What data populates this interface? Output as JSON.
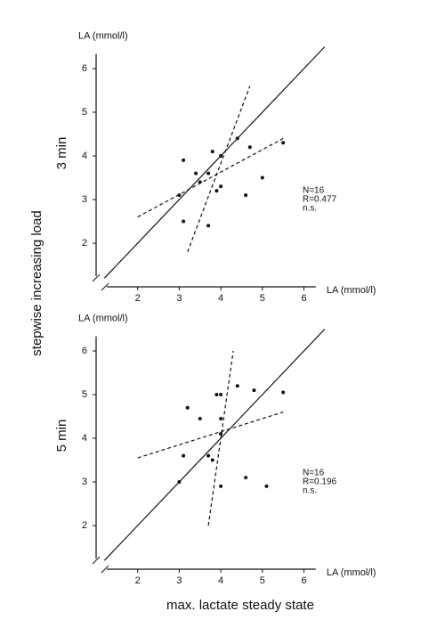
{
  "figure": {
    "y_title": "stepwise increasing load",
    "x_title": "max. lactate steady state"
  },
  "chart_data": [
    {
      "type": "scatter",
      "panel_label": "3 min",
      "ylabel": "LA (mmol/l)",
      "xlabel": "LA (mmol/l)",
      "x": [
        3.1,
        3.0,
        3.1,
        3.4,
        3.5,
        3.7,
        3.8,
        4.0,
        4.0,
        3.9,
        3.7,
        4.4,
        4.7,
        4.6,
        5.0,
        5.5
      ],
      "y": [
        3.9,
        3.1,
        2.5,
        3.6,
        3.4,
        3.6,
        4.1,
        4.0,
        3.3,
        3.2,
        2.4,
        4.4,
        4.2,
        3.1,
        3.5,
        4.3
      ],
      "color": "#111111",
      "lines": [
        {
          "x": [
            1.2,
            6.5
          ],
          "y": [
            1.2,
            6.5
          ],
          "style": "solid"
        },
        {
          "x": [
            2.0,
            5.5
          ],
          "y": [
            2.6,
            4.4
          ],
          "style": "dashed"
        },
        {
          "x": [
            3.2,
            4.7
          ],
          "y": [
            1.8,
            5.6
          ],
          "style": "dashed"
        }
      ],
      "xlim": [
        1,
        6.5
      ],
      "ylim": [
        1,
        6.5
      ],
      "xticks": [
        2,
        3,
        4,
        5,
        6
      ],
      "yticks": [
        2,
        3,
        4,
        5,
        6
      ],
      "annotations": [
        "N=16",
        "R=0.477",
        "n.s."
      ]
    },
    {
      "type": "scatter",
      "panel_label": "5 min",
      "ylabel": "LA (mmol/l)",
      "xlabel": "LA (mmol/l)",
      "x": [
        3.2,
        3.5,
        3.1,
        3.0,
        3.7,
        3.8,
        3.9,
        4.0,
        4.0,
        4.4,
        4.8,
        5.5,
        4.6,
        4.0,
        5.1,
        4.0
      ],
      "y": [
        4.7,
        4.45,
        3.6,
        3.0,
        3.6,
        3.5,
        5.0,
        5.0,
        4.45,
        5.2,
        5.1,
        5.05,
        3.1,
        2.9,
        2.9,
        4.1
      ],
      "color": "#111111",
      "lines": [
        {
          "x": [
            1.2,
            6.5
          ],
          "y": [
            1.2,
            6.5
          ],
          "style": "solid"
        },
        {
          "x": [
            2.0,
            5.5
          ],
          "y": [
            3.55,
            4.6
          ],
          "style": "dashed"
        },
        {
          "x": [
            3.7,
            4.3
          ],
          "y": [
            2.0,
            6.0
          ],
          "style": "dashed"
        }
      ],
      "xlim": [
        1,
        6.5
      ],
      "ylim": [
        1,
        6.5
      ],
      "xticks": [
        2,
        3,
        4,
        5,
        6
      ],
      "yticks": [
        2,
        3,
        4,
        5,
        6
      ],
      "annotations": [
        "N=16",
        "R=0.196",
        "n.s."
      ]
    }
  ]
}
